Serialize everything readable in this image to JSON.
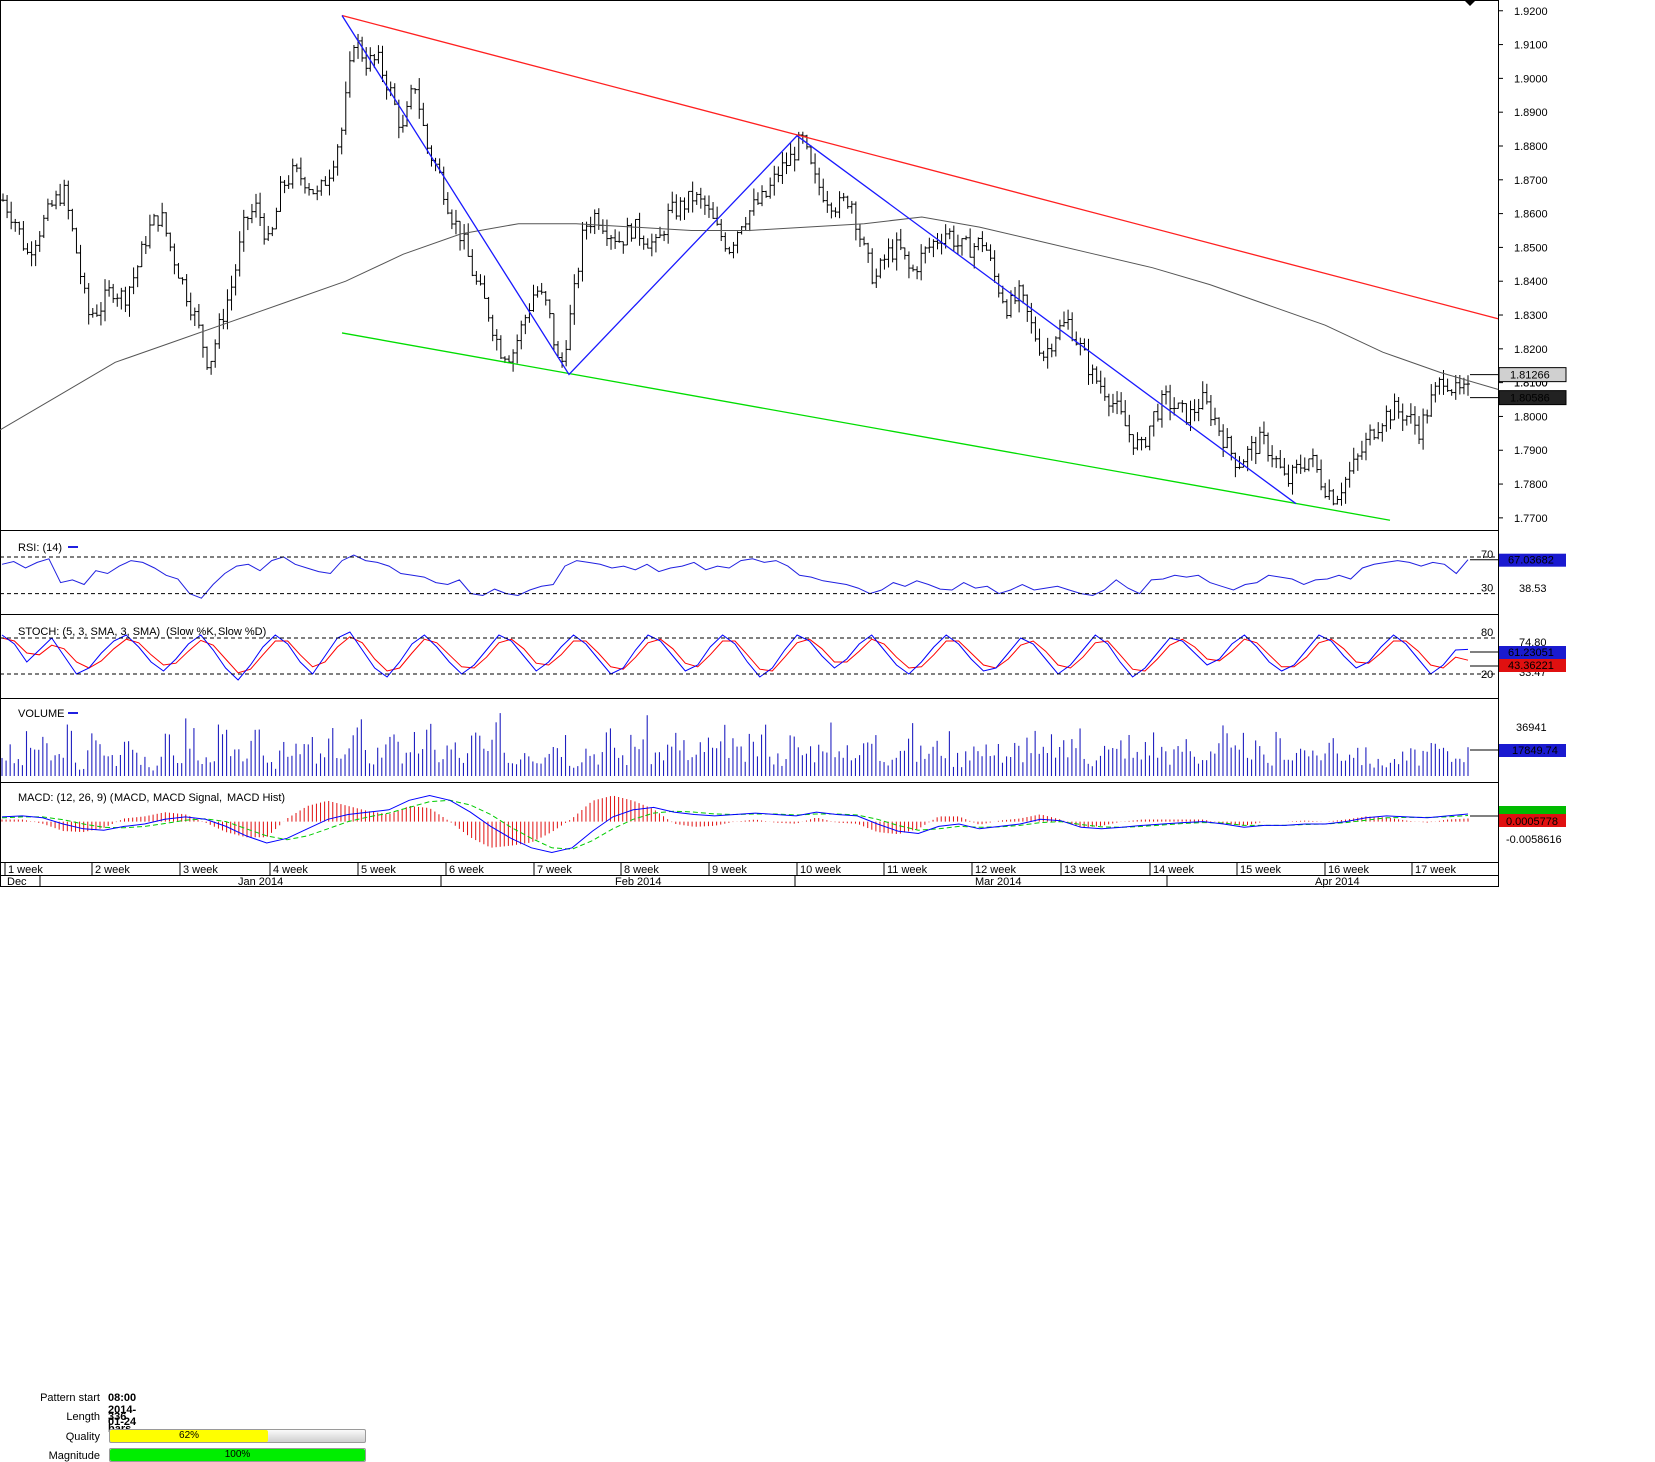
{
  "chart_data": {
    "type": "ohlc",
    "x_labels_week": [
      "1 week",
      "2 week",
      "3 week",
      "4 week",
      "5 week",
      "6 week",
      "7 week",
      "8 week",
      "9 week",
      "10 week",
      "11 week",
      "12 week",
      "13 week",
      "14 week",
      "15 week",
      "16 week",
      "17 week"
    ],
    "x_labels_month": [
      "Dec",
      "Jan 2014",
      "Feb 2014",
      "Mar 2014",
      "Apr 2014"
    ],
    "price_axis_ticks": [
      "1.9200",
      "1.9100",
      "1.9000",
      "1.8900",
      "1.8800",
      "1.8700",
      "1.8600",
      "1.8500",
      "1.8400",
      "1.8300",
      "1.8200",
      "1.8100",
      "1.8000",
      "1.7900",
      "1.7800",
      "1.7700"
    ],
    "ylim": [
      1.767,
      1.922
    ],
    "price_points": [
      1.864,
      1.858,
      1.848,
      1.855,
      1.862,
      1.867,
      1.85,
      1.83,
      1.832,
      1.838,
      1.835,
      1.843,
      1.855,
      1.86,
      1.848,
      1.838,
      1.828,
      1.815,
      1.828,
      1.84,
      1.858,
      1.862,
      1.85,
      1.868,
      1.872,
      1.87,
      1.865,
      1.873,
      1.885,
      1.912,
      1.905,
      1.905,
      1.896,
      1.884,
      1.899,
      1.88,
      1.872,
      1.86,
      1.852,
      1.84,
      1.832,
      1.82,
      1.818,
      1.828,
      1.838,
      1.832,
      1.813,
      1.832,
      1.856,
      1.86,
      1.855,
      1.852,
      1.856,
      1.853,
      1.85,
      1.86,
      1.862,
      1.865,
      1.862,
      1.855,
      1.85,
      1.858,
      1.862,
      1.865,
      1.872,
      1.876,
      1.882,
      1.87,
      1.865,
      1.862,
      1.865,
      1.85,
      1.84,
      1.848,
      1.85,
      1.842,
      1.848,
      1.852,
      1.855,
      1.85,
      1.85,
      1.852,
      1.84,
      1.832,
      1.836,
      1.826,
      1.818,
      1.825,
      1.828,
      1.82,
      1.812,
      1.808,
      1.802,
      1.795,
      1.79,
      1.8,
      1.805,
      1.802,
      1.8,
      1.805,
      1.8,
      1.792,
      1.786,
      1.79,
      1.793,
      1.788,
      1.78,
      1.785,
      1.788,
      1.78,
      1.776,
      1.782,
      1.788,
      1.795,
      1.8,
      1.802,
      1.8,
      1.796,
      1.805,
      1.812,
      1.807,
      1.807
    ],
    "moving_average": [
      1.796,
      1.806,
      1.816,
      1.822,
      1.828,
      1.834,
      1.84,
      1.848,
      1.854,
      1.857,
      1.857,
      1.856,
      1.855,
      1.855,
      1.856,
      1.857,
      1.859,
      1.856,
      1.852,
      1.848,
      1.844,
      1.839,
      1.833,
      1.827,
      1.819,
      1.813,
      1.808
    ],
    "last_price_high": "1.81266",
    "last_price_low": "1.80586",
    "axis_partial_label": "1.8100",
    "pattern": {
      "start_label": "Pattern start",
      "start_value": "08:00 2014-01-24",
      "length_label": "Length",
      "length_value": "336 bars",
      "quality_label": "Quality",
      "quality_value": "62%",
      "quality_fraction": 0.62,
      "magnitude_label": "Magnitude",
      "magnitude_value": "100%",
      "magnitude_fraction": 1.0,
      "resistance_color": "#ff2020",
      "support_color": "#00dd00",
      "zigzag_color": "#1a1aff",
      "quality_color": "#ffff00",
      "magnitude_color": "#00ee00"
    },
    "rsi": {
      "title": "RSI: (14)",
      "level_high": "70",
      "level_low": "30",
      "current": "67.03682",
      "axis_value": "38.53",
      "ylim": [
        10,
        95
      ],
      "values": [
        62,
        65,
        58,
        64,
        68,
        42,
        45,
        40,
        55,
        52,
        60,
        66,
        64,
        58,
        50,
        46,
        30,
        25,
        40,
        52,
        60,
        62,
        55,
        66,
        70,
        62,
        58,
        54,
        52,
        66,
        72,
        66,
        64,
        60,
        52,
        50,
        48,
        42,
        40,
        45,
        30,
        28,
        35,
        30,
        28,
        34,
        38,
        40,
        60,
        66,
        64,
        62,
        58,
        60,
        56,
        62,
        54,
        58,
        60,
        64,
        56,
        60,
        58,
        66,
        68,
        64,
        66,
        60,
        50,
        48,
        44,
        42,
        40,
        36,
        30,
        34,
        42,
        38,
        44,
        40,
        35,
        34,
        42,
        36,
        38,
        30,
        34,
        40,
        34,
        36,
        38,
        34,
        30,
        28,
        34,
        45,
        36,
        30,
        45,
        46,
        50,
        48,
        50,
        42,
        38,
        34,
        40,
        42,
        50,
        48,
        46,
        40,
        45,
        46,
        50,
        46,
        58,
        62,
        64,
        66,
        64,
        60,
        64,
        62,
        52,
        67
      ]
    },
    "stoch": {
      "title": "STOCH: (5, 3, SMA, 3, SMA)",
      "series": [
        "Slow %K",
        "Slow %D"
      ],
      "series_colors": [
        "#0000ff",
        "#ff0000"
      ],
      "level_high": "80",
      "level_low": "20",
      "axis_partial_high": "74.80",
      "axis_partial_low": "33.47",
      "k_current": "61.23051",
      "d_current": "43.36221",
      "k_values": [
        85,
        70,
        40,
        60,
        80,
        50,
        20,
        30,
        55,
        75,
        85,
        65,
        40,
        25,
        45,
        70,
        85,
        60,
        30,
        10,
        35,
        65,
        85,
        70,
        40,
        20,
        50,
        80,
        90,
        60,
        30,
        15,
        40,
        70,
        85,
        65,
        40,
        20,
        35,
        60,
        85,
        75,
        50,
        25,
        40,
        65,
        85,
        70,
        45,
        20,
        30,
        60,
        85,
        75,
        50,
        25,
        35,
        65,
        85,
        70,
        40,
        15,
        30,
        60,
        85,
        75,
        50,
        30,
        45,
        70,
        85,
        60,
        35,
        20,
        40,
        65,
        85,
        70,
        45,
        25,
        30,
        55,
        80,
        70,
        45,
        20,
        35,
        60,
        85,
        70,
        40,
        15,
        30,
        55,
        80,
        75,
        55,
        35,
        45,
        70,
        85,
        65,
        40,
        25,
        35,
        60,
        85,
        75,
        50,
        30,
        40,
        65,
        85,
        70,
        45,
        20,
        35,
        60,
        61
      ],
      "d_values": [
        80,
        75,
        55,
        52,
        68,
        62,
        40,
        30,
        42,
        62,
        78,
        72,
        52,
        35,
        38,
        58,
        76,
        68,
        45,
        22,
        28,
        52,
        75,
        75,
        52,
        32,
        40,
        65,
        82,
        72,
        45,
        25,
        30,
        55,
        78,
        72,
        52,
        32,
        30,
        48,
        72,
        78,
        62,
        38,
        35,
        52,
        75,
        75,
        55,
        32,
        28,
        48,
        72,
        78,
        62,
        38,
        32,
        52,
        75,
        75,
        52,
        28,
        25,
        48,
        72,
        78,
        62,
        40,
        40,
        58,
        78,
        70,
        48,
        30,
        32,
        52,
        75,
        75,
        55,
        35,
        30,
        45,
        68,
        75,
        58,
        35,
        30,
        48,
        72,
        75,
        52,
        28,
        25,
        45,
        68,
        78,
        65,
        45,
        42,
        58,
        78,
        72,
        52,
        32,
        32,
        48,
        72,
        78,
        62,
        40,
        38,
        55,
        75,
        75,
        58,
        35,
        30,
        48,
        43
      ]
    },
    "volume": {
      "title": "VOLUME",
      "axis_value": "36941",
      "current": "17849.74",
      "values": [
        18000,
        12000,
        25000,
        22000,
        15000,
        30000,
        8000,
        26000,
        20000,
        14000,
        28000,
        18000,
        9000,
        24000,
        16000,
        34000,
        12000,
        22000,
        29000,
        15000,
        20000,
        26000,
        11000,
        31000,
        18000,
        23000,
        14000,
        27000,
        19000,
        33000,
        16000,
        21000,
        42000,
        14000,
        25000,
        30000,
        18000,
        22000,
        15000,
        28000,
        20000,
        36000,
        12000,
        24000,
        18000,
        26000,
        30000,
        14000,
        22000,
        19000,
        28000,
        16000,
        25000,
        33000,
        18000,
        21000,
        27000,
        13000,
        24000,
        20000,
        29000,
        17000,
        23000,
        31000,
        15000,
        26000,
        19000,
        22000,
        35000,
        14000,
        24000,
        20000,
        28000,
        16000,
        25000,
        30000,
        18000,
        22000,
        26000,
        15000,
        24000,
        19000,
        28000,
        13000,
        22000,
        27000,
        17000,
        25000,
        20000,
        30000,
        14000,
        23000,
        19000,
        26000,
        16000,
        28000,
        21000,
        18000,
        24000,
        15000,
        22000,
        30000,
        17000,
        25000,
        20000,
        12000,
        26000,
        18000,
        23000,
        14000,
        28000,
        19000,
        22000,
        16000,
        10000,
        12000,
        14000,
        16000,
        18000,
        20000,
        15000,
        22000,
        18000
      ]
    },
    "macd": {
      "title": "MACD: (12, 26, 9)",
      "series": [
        "MACD",
        "MACD Signal",
        "MACD Hist"
      ],
      "series_colors": [
        "#0000ff",
        "#00cc00",
        "#ff0000"
      ],
      "current": "0.0005778",
      "axis_value": "-0.0058616",
      "ylim": [
        -0.0085,
        0.0075
      ],
      "macd_values": [
        0.001,
        0.0012,
        0.0008,
        -0.0005,
        -0.0015,
        -0.0018,
        -0.001,
        -0.0005,
        0.0005,
        0.001,
        0.0005,
        -0.001,
        -0.003,
        -0.0045,
        -0.0035,
        -0.0015,
        0.0005,
        0.0015,
        0.002,
        0.0025,
        0.0045,
        0.0055,
        0.0045,
        0.002,
        -0.001,
        -0.0035,
        -0.0055,
        -0.0065,
        -0.0055,
        -0.002,
        0.001,
        0.0025,
        0.003,
        0.002,
        0.0015,
        0.0012,
        0.0015,
        0.0018,
        0.0015,
        0.0012,
        0.002,
        0.0015,
        0.0012,
        -0.0005,
        -0.002,
        -0.0025,
        -0.001,
        -0.0005,
        -0.0015,
        -0.001,
        -0.0005,
        0.0005,
        0.0002,
        -0.0012,
        -0.0015,
        -0.0012,
        -0.0008,
        -0.0005,
        -0.0002,
        0.0,
        -0.0005,
        -0.0012,
        -0.0008,
        -0.0008,
        -0.0005,
        -0.0005,
        0.0,
        0.0008,
        0.0012,
        0.001,
        0.0008,
        0.0012,
        0.0016
      ],
      "signal_values": [
        0.0008,
        0.001,
        0.001,
        0.0004,
        -0.0005,
        -0.0012,
        -0.0013,
        -0.001,
        -0.0004,
        0.0003,
        0.0006,
        0.0,
        -0.0015,
        -0.003,
        -0.0038,
        -0.003,
        -0.0015,
        0.0,
        0.001,
        0.0018,
        0.003,
        0.0042,
        0.0045,
        0.0035,
        0.0015,
        -0.0012,
        -0.0035,
        -0.0055,
        -0.0058,
        -0.004,
        -0.0015,
        0.0005,
        0.0018,
        0.0022,
        0.002,
        0.0016,
        0.0015,
        0.0016,
        0.0016,
        0.0014,
        0.0016,
        0.0016,
        0.0014,
        0.0005,
        -0.0008,
        -0.0018,
        -0.0015,
        -0.001,
        -0.0012,
        -0.0011,
        -0.0008,
        -0.0002,
        0.0,
        -0.0006,
        -0.0011,
        -0.0012,
        -0.001,
        -0.0007,
        -0.0004,
        -0.0002,
        -0.0003,
        -0.0008,
        -0.0008,
        -0.0008,
        -0.0006,
        -0.0005,
        -0.0002,
        0.0003,
        0.0008,
        0.0009,
        0.0009,
        0.001,
        0.0013
      ]
    }
  }
}
